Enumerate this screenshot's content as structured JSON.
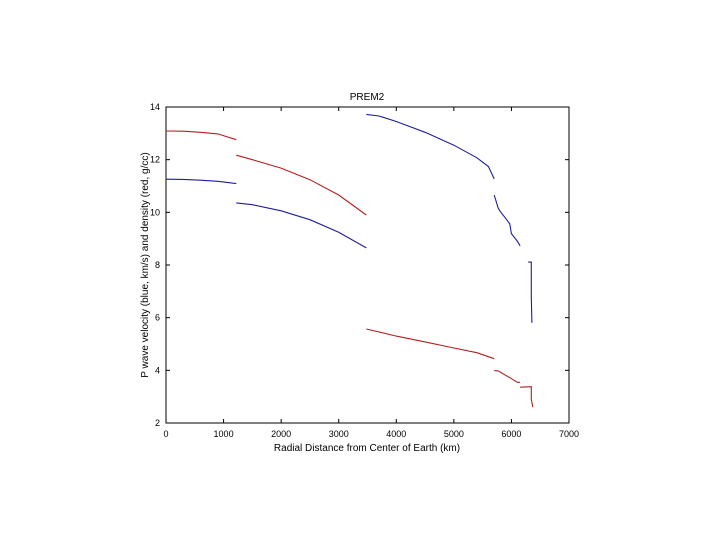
{
  "chart_data": {
    "type": "line",
    "title": "PREM2",
    "xlabel": "Radial Distance from Center of Earth (km)",
    "ylabel": "P wave velocity (blue, km/s) and density (red, g/cc)",
    "xlim": [
      0,
      7000
    ],
    "ylim": [
      2,
      14
    ],
    "xticks": [
      0,
      1000,
      2000,
      3000,
      4000,
      5000,
      6000,
      7000
    ],
    "yticks": [
      2,
      4,
      6,
      8,
      10,
      12,
      14
    ],
    "grid": false,
    "series": [
      {
        "color": "#1f1f9a",
        "segments": [
          [
            [
              0,
              11.26
            ],
            [
              300,
              11.25
            ],
            [
              600,
              11.22
            ],
            [
              900,
              11.18
            ],
            [
              1221,
              11.09
            ]
          ],
          [
            [
              1221,
              10.36
            ],
            [
              1500,
              10.29
            ],
            [
              2000,
              10.06
            ],
            [
              2500,
              9.72
            ],
            [
              3000,
              9.24
            ],
            [
              3480,
              8.65
            ]
          ],
          [
            [
              3480,
              13.72
            ],
            [
              3700,
              13.66
            ],
            [
              4000,
              13.45
            ],
            [
              4500,
              13.04
            ],
            [
              5000,
              12.55
            ],
            [
              5400,
              12.07
            ],
            [
              5600,
              11.74
            ],
            [
              5701,
              11.27
            ]
          ],
          [
            [
              5701,
              10.66
            ],
            [
              5771,
              10.16
            ],
            [
              5800,
              10.05
            ],
            [
              5900,
              9.77
            ],
            [
              5971,
              9.56
            ],
            [
              6000,
              9.19
            ],
            [
              6100,
              8.91
            ],
            [
              6151,
              8.73
            ]
          ],
          [
            [
              6291,
              8.11
            ],
            [
              6346,
              8.11
            ],
            [
              6346,
              6.8
            ],
            [
              6356,
              5.8
            ]
          ]
        ]
      },
      {
        "color": "#b22020",
        "segments": [
          [
            [
              0,
              13.09
            ],
            [
              300,
              13.08
            ],
            [
              600,
              13.04
            ],
            [
              900,
              12.98
            ],
            [
              1221,
              12.76
            ]
          ],
          [
            [
              1221,
              12.17
            ],
            [
              1500,
              12.0
            ],
            [
              2000,
              11.68
            ],
            [
              2500,
              11.24
            ],
            [
              3000,
              10.66
            ],
            [
              3480,
              9.9
            ]
          ],
          [
            [
              3480,
              5.57
            ],
            [
              4000,
              5.3
            ],
            [
              4500,
              5.08
            ],
            [
              5000,
              4.85
            ],
            [
              5400,
              4.67
            ],
            [
              5701,
              4.44
            ]
          ],
          [
            [
              5701,
              3.99
            ],
            [
              5771,
              3.98
            ],
            [
              5971,
              3.72
            ],
            [
              6100,
              3.55
            ],
            [
              6151,
              3.54
            ]
          ],
          [
            [
              6151,
              3.36
            ],
            [
              6346,
              3.38
            ],
            [
              6346,
              2.9
            ],
            [
              6371,
              2.6
            ]
          ]
        ]
      }
    ]
  }
}
